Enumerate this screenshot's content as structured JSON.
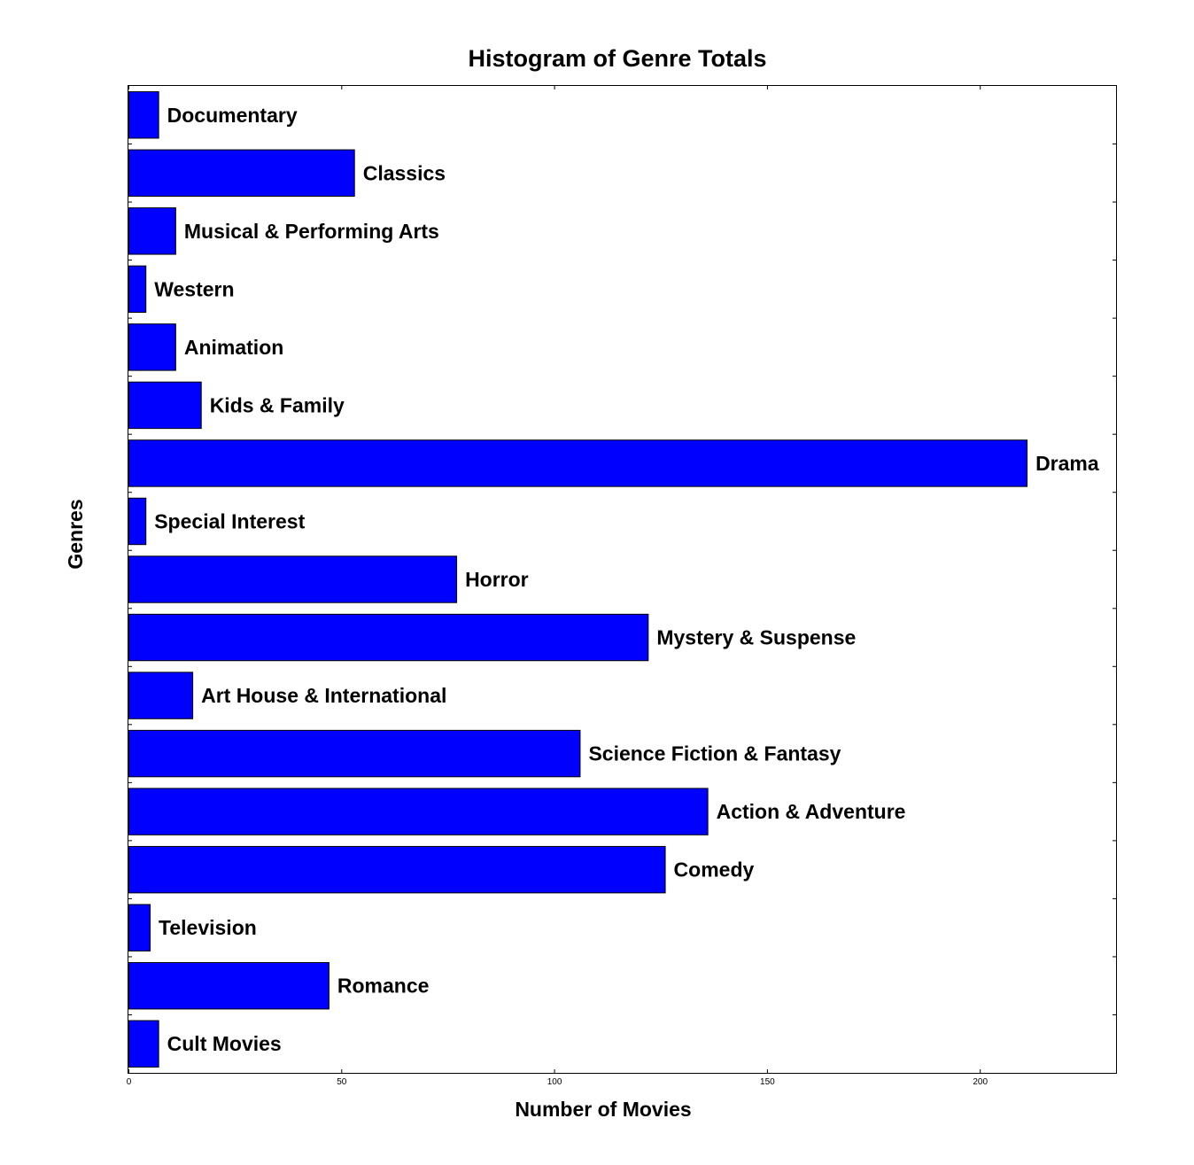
{
  "chart_data": {
    "type": "bar",
    "orientation": "horizontal",
    "title": "Histogram of Genre Totals",
    "xlabel": "Number of Movies",
    "ylabel": "Genres",
    "xlim": [
      0,
      232
    ],
    "xticks": [
      0,
      50,
      100,
      150,
      200
    ],
    "grid": false,
    "bar_color": "#0000ff",
    "categories": [
      "Documentary",
      "Classics",
      "Musical & Performing Arts",
      "Western",
      "Animation",
      "Kids & Family",
      "Drama",
      "Special Interest",
      "Horror",
      "Mystery & Suspense",
      "Art House & International",
      "Science Fiction & Fantasy",
      "Action & Adventure",
      "Comedy",
      "Television",
      "Romance",
      "Cult Movies"
    ],
    "values": [
      7,
      53,
      11,
      4,
      11,
      17,
      211,
      4,
      77,
      122,
      15,
      106,
      136,
      126,
      5,
      47,
      7
    ]
  }
}
